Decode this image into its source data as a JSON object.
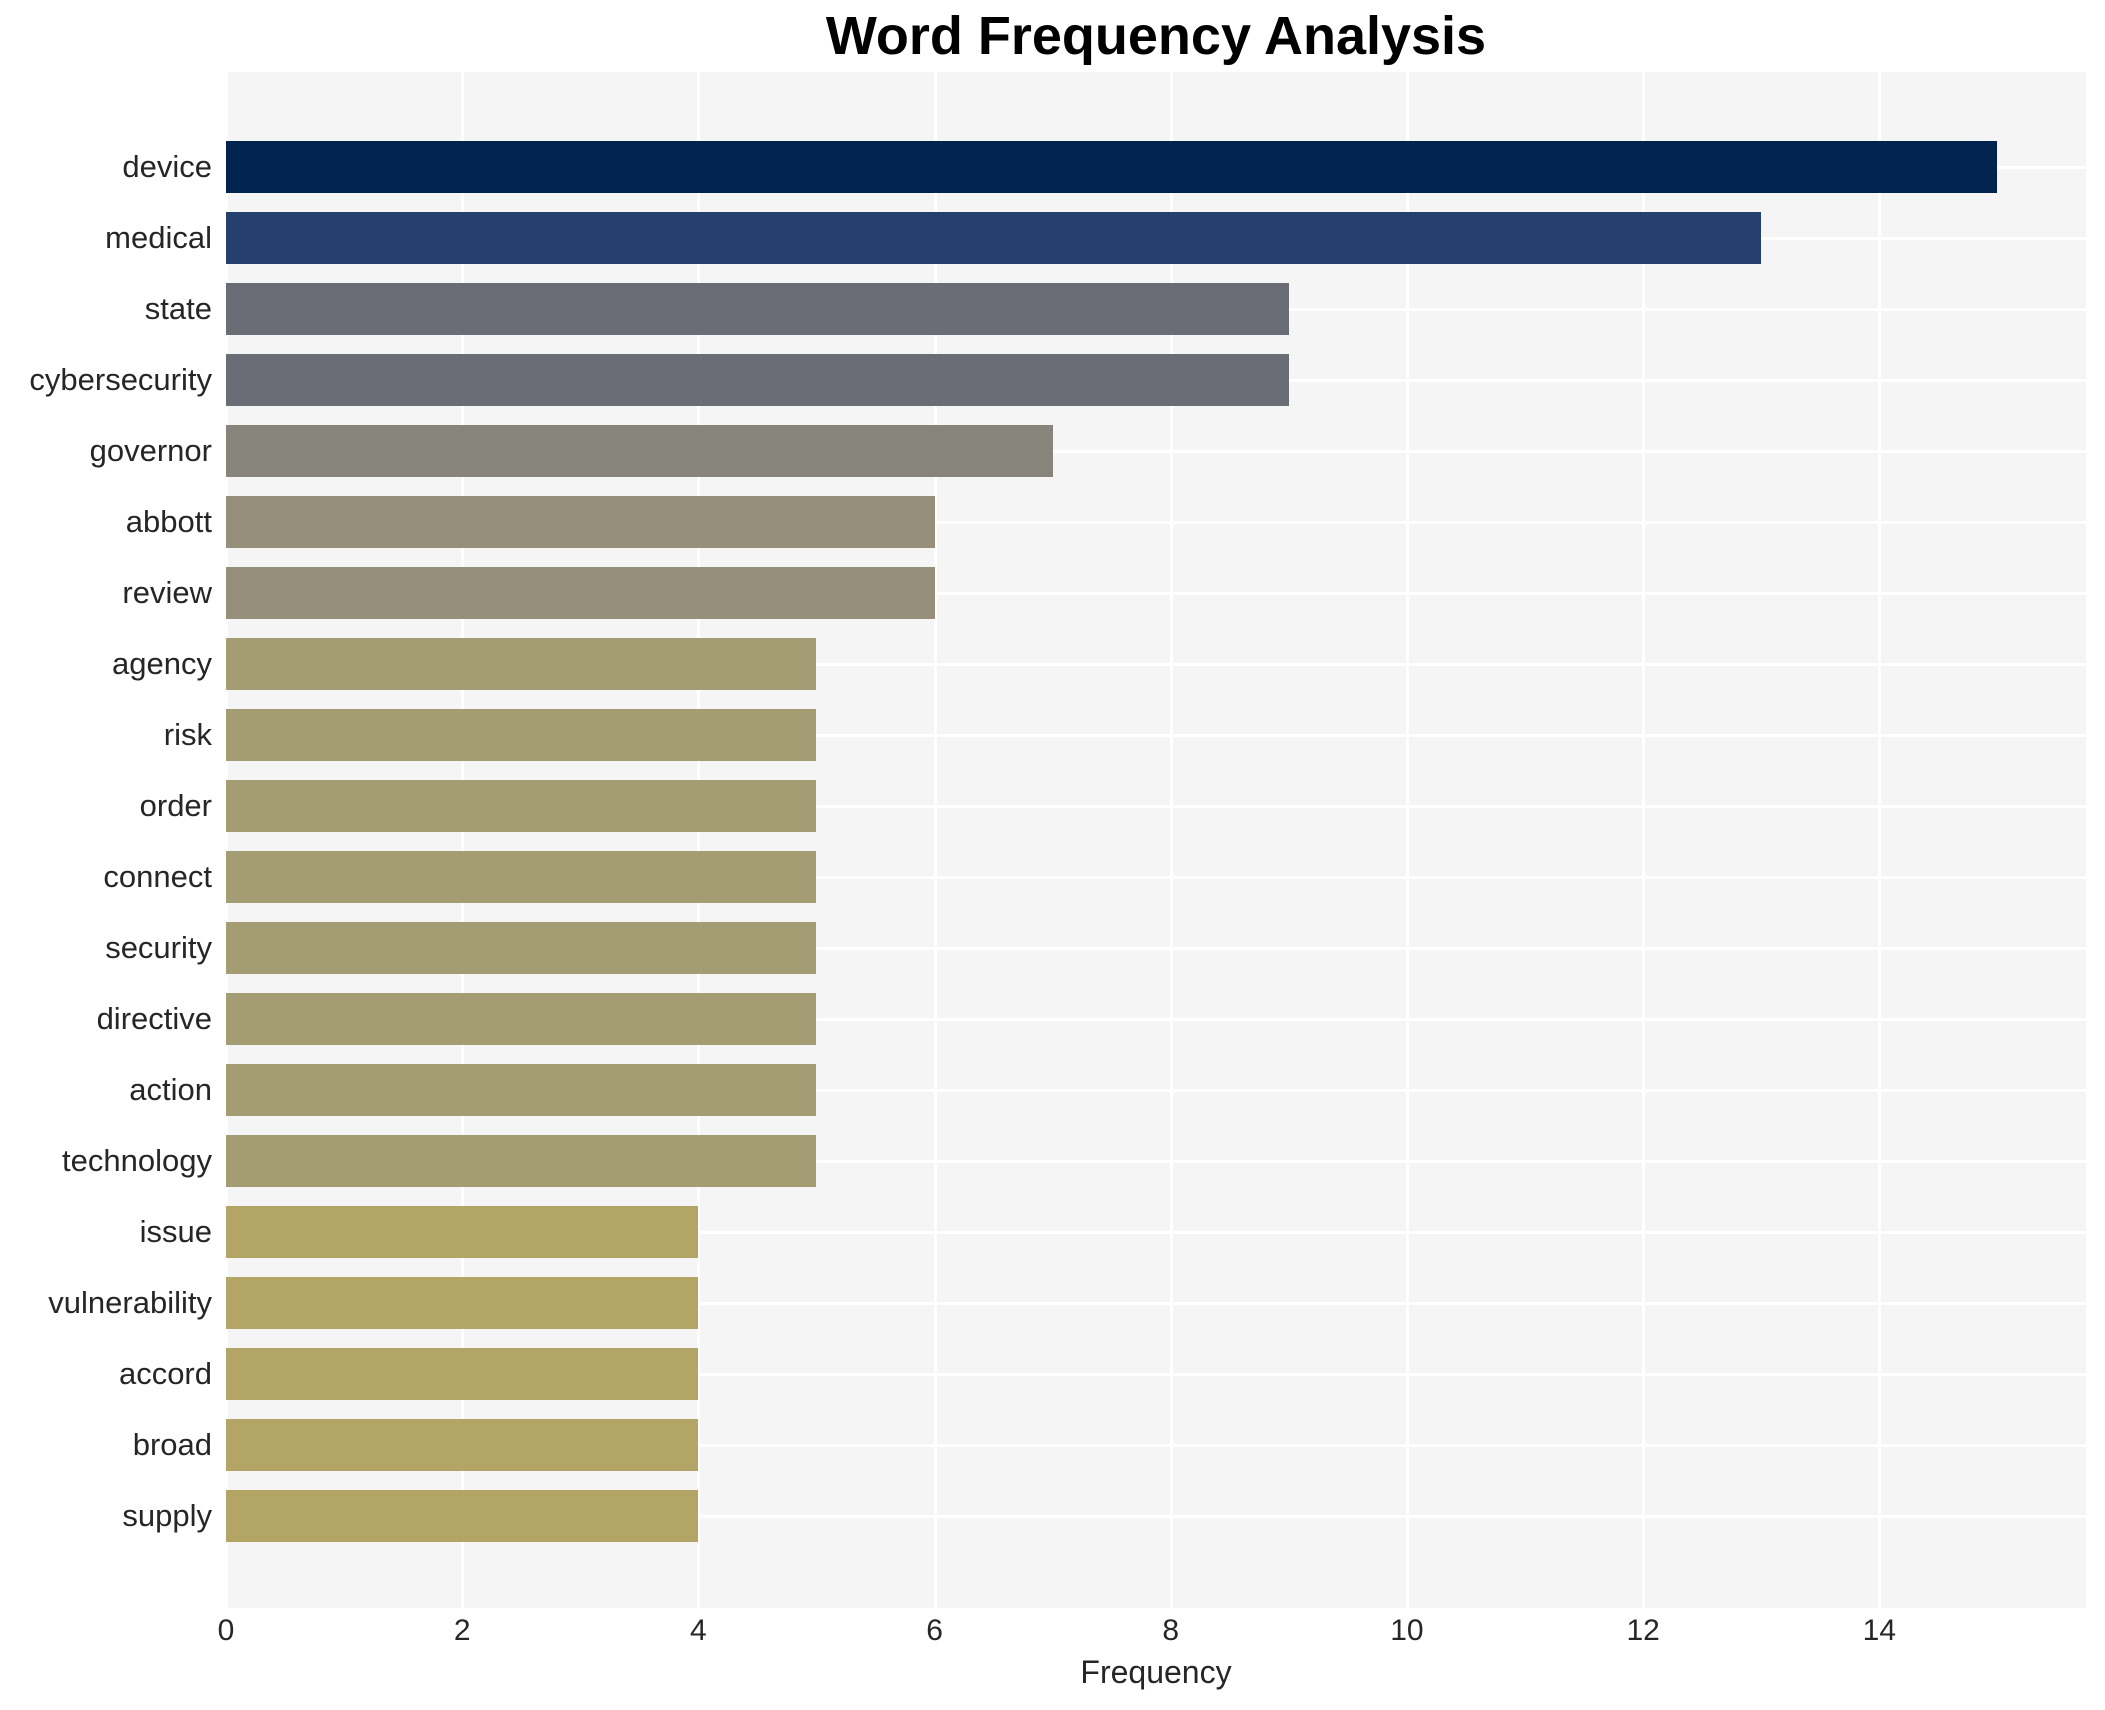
{
  "chart_data": {
    "type": "bar",
    "orientation": "horizontal",
    "title": "Word Frequency Analysis",
    "xlabel": "Frequency",
    "ylabel": "",
    "categories": [
      "device",
      "medical",
      "state",
      "cybersecurity",
      "governor",
      "abbott",
      "review",
      "agency",
      "risk",
      "order",
      "connect",
      "security",
      "directive",
      "action",
      "technology",
      "issue",
      "vulnerability",
      "accord",
      "broad",
      "supply"
    ],
    "values": [
      15,
      13,
      9,
      9,
      7,
      6,
      6,
      5,
      5,
      5,
      5,
      5,
      5,
      5,
      5,
      4,
      4,
      4,
      4,
      4
    ],
    "bar_colors": [
      "#012350",
      "#25406d",
      "#6b6d76",
      "#6b6d76",
      "#87847c",
      "#96907b",
      "#96907b",
      "#a49c73",
      "#a49c73",
      "#a49c73",
      "#a49c73",
      "#a49c73",
      "#a49c73",
      "#a49c73",
      "#a49c73",
      "#b2a566",
      "#b2a566",
      "#b2a566",
      "#b2a566",
      "#b2a566"
    ],
    "xticks": [
      0,
      2,
      4,
      6,
      8,
      10,
      12,
      14
    ],
    "xlim": [
      0,
      15.75
    ],
    "grid": true,
    "legend": false,
    "colors": {
      "figure_background": "#ffffff",
      "plot_background": "#f5f5f6",
      "gridline": "#ffffff",
      "tick_text": "#262626",
      "title_text": "#000000"
    }
  }
}
